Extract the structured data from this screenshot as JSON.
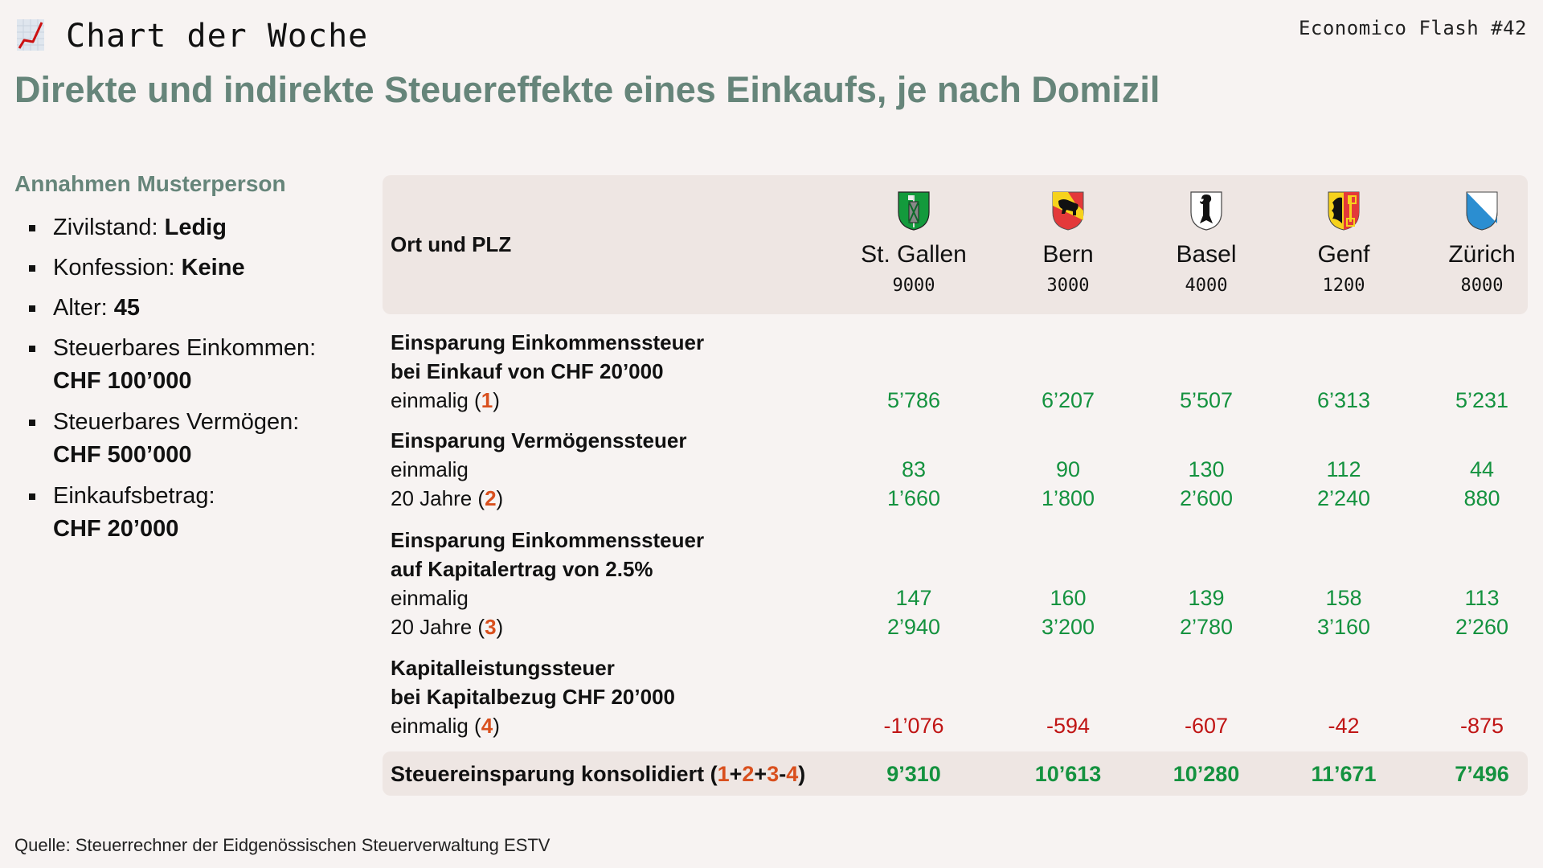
{
  "header": {
    "kicker": "Chart der Woche",
    "kicker_icon": "chart-increasing-icon",
    "edition": "Economico Flash #42",
    "title": "Direkte und indirekte Steuereffekte eines Einkaufs, je nach Domizil"
  },
  "assumptions": {
    "heading": "Annahmen Musterperson",
    "items": [
      {
        "label": "Zivilstand: ",
        "value": "Ledig"
      },
      {
        "label": "Konfession: ",
        "value": "Keine"
      },
      {
        "label": "Alter: ",
        "value": "45"
      },
      {
        "label": "Steuerbares Einkommen:",
        "value": "CHF 100’000"
      },
      {
        "label": "Steuerbares Vermögen:",
        "value": "CHF 500’000"
      },
      {
        "label": "Einkaufsbetrag:",
        "value": "CHF 20’000"
      }
    ]
  },
  "table": {
    "header_label": "Ort und PLZ",
    "columns": [
      {
        "city": "St. Gallen",
        "plz": "9000",
        "crest": "st-gallen-crest-icon"
      },
      {
        "city": "Bern",
        "plz": "3000",
        "crest": "bern-crest-icon"
      },
      {
        "city": "Basel",
        "plz": "4000",
        "crest": "basel-crest-icon"
      },
      {
        "city": "Genf",
        "plz": "1200",
        "crest": "genf-crest-icon"
      },
      {
        "city": "Zürich",
        "plz": "8000",
        "crest": "zuerich-crest-icon"
      }
    ],
    "sections": [
      {
        "title_lines": [
          "Einsparung Einkommenssteuer",
          "bei Einkauf von CHF 20’000"
        ],
        "rows": [
          {
            "label": "einmalig (",
            "ref": "1",
            "suffix": ")",
            "values": [
              "5’786",
              "6’207",
              "5’507",
              "6’313",
              "5’231"
            ]
          }
        ]
      },
      {
        "title_lines": [
          "Einsparung Vermögenssteuer"
        ],
        "rows": [
          {
            "label": "einmalig",
            "ref": "",
            "suffix": "",
            "values": [
              "83",
              "90",
              "130",
              "112",
              "44"
            ]
          },
          {
            "label": "20 Jahre (",
            "ref": "2",
            "suffix": ")",
            "values": [
              "1’660",
              "1’800",
              "2’600",
              "2’240",
              "880"
            ]
          }
        ]
      },
      {
        "title_lines": [
          "Einsparung Einkommenssteuer",
          "auf Kapitalertrag von 2.5%"
        ],
        "rows": [
          {
            "label": "einmalig",
            "ref": "",
            "suffix": "",
            "values": [
              "147",
              "160",
              "139",
              "158",
              "113"
            ]
          },
          {
            "label": "20 Jahre (",
            "ref": "3",
            "suffix": ")",
            "values": [
              "2’940",
              "3’200",
              "2’780",
              "3’160",
              "2’260"
            ]
          }
        ]
      },
      {
        "title_lines": [
          "Kapitalleistungssteuer",
          "bei Kapitalbezug CHF 20’000"
        ],
        "rows": [
          {
            "label": "einmalig (",
            "ref": "4",
            "suffix": ")",
            "values": [
              "-1’076",
              "-594",
              "-607",
              "-42",
              "-875"
            ]
          }
        ]
      }
    ],
    "total": {
      "label": "Steuereinsparung konsolidiert (",
      "formula": [
        "1",
        "+",
        "2",
        "+",
        "3",
        "-",
        "4"
      ],
      "suffix": ")",
      "values": [
        "9’310",
        "10’613",
        "10’280",
        "11’671",
        "7’496"
      ]
    }
  },
  "source": "Quelle: Steuerrechner der Eidgenössischen Steuerverwaltung ESTV",
  "colors": {
    "accent": "#66857a",
    "positive": "#14923f",
    "negative": "#c01515",
    "reference": "#d9501e",
    "panel": "#eee6e3",
    "background": "#f7f3f2"
  }
}
